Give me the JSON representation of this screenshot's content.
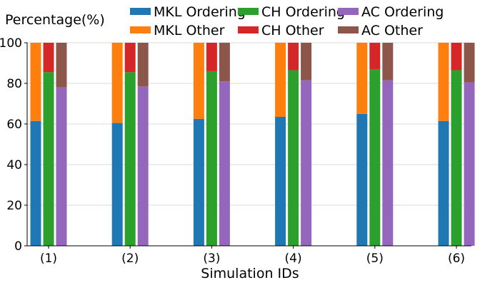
{
  "chart_data": {
    "type": "bar",
    "stacked": true,
    "xlabel": "Simulation IDs",
    "ylabel": "Percentage(%)",
    "ylim": [
      0,
      100
    ],
    "yticks": [
      0,
      20,
      40,
      60,
      80,
      100
    ],
    "grid": "horizontal",
    "legend_position": "top",
    "categories": [
      "(1)",
      "(2)",
      "(3)",
      "(4)",
      "(5)",
      "(6)"
    ],
    "groups": [
      {
        "method": "MKL",
        "series": [
          {
            "name": "MKL Ordering",
            "color": "#1f77b4",
            "values": [
              61.5,
              60.5,
              62.5,
              63.5,
              65,
              61.5
            ]
          },
          {
            "name": "MKL Other",
            "color": "#ff7f0e",
            "values": [
              38.5,
              39.5,
              37.5,
              36.5,
              35,
              38.5
            ]
          }
        ]
      },
      {
        "method": "CH",
        "series": [
          {
            "name": "CH Ordering",
            "color": "#2ca02c",
            "values": [
              85.5,
              85.5,
              86,
              86.5,
              87,
              86.5
            ]
          },
          {
            "name": "CH Other",
            "color": "#d62728",
            "values": [
              14.5,
              14.5,
              14,
              13.5,
              13,
              13.5
            ]
          }
        ]
      },
      {
        "method": "AC",
        "series": [
          {
            "name": "AC Ordering",
            "color": "#9467bd",
            "values": [
              78,
              78.5,
              81,
              81.5,
              81.5,
              80.5
            ]
          },
          {
            "name": "AC Other",
            "color": "#8c564b",
            "values": [
              22,
              21.5,
              19,
              18.5,
              18.5,
              19.5
            ]
          }
        ]
      }
    ],
    "legend_order": [
      "MKL Ordering",
      "CH Ordering",
      "AC Ordering",
      "MKL Other",
      "CH Other",
      "AC Other"
    ]
  }
}
